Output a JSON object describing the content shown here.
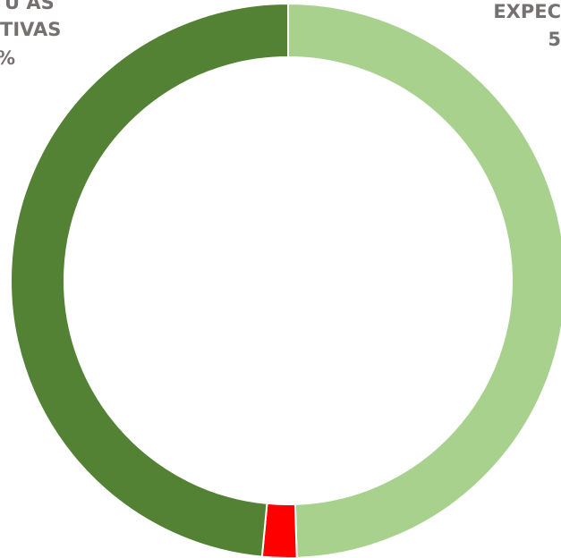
{
  "chart_data": {
    "type": "donut",
    "categories": [
      null,
      null,
      null
    ],
    "values": [
      49.5,
      2,
      48.5
    ],
    "colors": [
      "#a9d18e",
      "#ff0000",
      "#548235"
    ],
    "annotations": [
      "EXPEC",
      "5",
      "U AS",
      "TIVAS",
      "%"
    ]
  }
}
